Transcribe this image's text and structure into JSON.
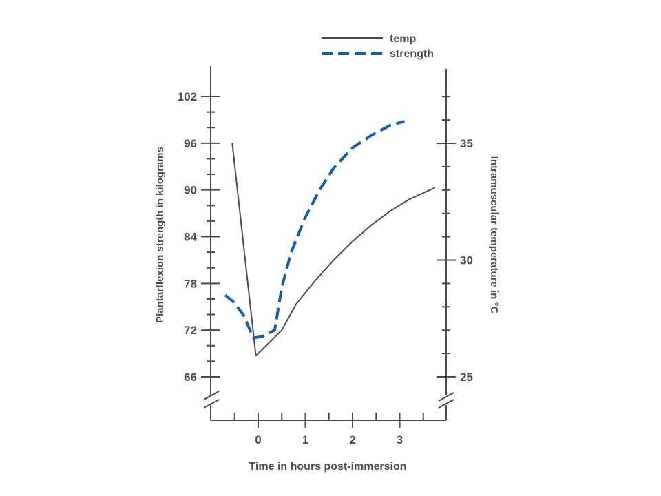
{
  "chart_data": {
    "type": "line",
    "title": "",
    "xlabel": "Time in hours post-immersion",
    "ylabel_left": "Plantarflexion strength in kilograms",
    "ylabel_right": "Intramuscular temperature in °C",
    "x_ticks": [
      "0",
      "1",
      "2",
      "3"
    ],
    "x_tick_values": [
      0,
      1,
      2,
      3
    ],
    "xlim": [
      -1,
      4
    ],
    "y_left_ticks": [
      "66",
      "72",
      "78",
      "84",
      "90",
      "96",
      "102"
    ],
    "y_left_tick_values": [
      66,
      72,
      78,
      84,
      90,
      96,
      102
    ],
    "ylim_left": [
      66,
      102
    ],
    "y_right_ticks": [
      "25",
      "30",
      "35"
    ],
    "y_right_tick_values": [
      25,
      30,
      35
    ],
    "ylim_right": [
      25,
      35
    ],
    "axis_breaks": true,
    "grid": false,
    "legend_position": "top-right",
    "series": [
      {
        "name": "temp",
        "axis": "right",
        "style": "solid",
        "color": "#4a4a4a",
        "x": [
          -0.55,
          -0.05,
          0.5,
          0.8,
          1.2,
          1.6,
          2.0,
          2.4,
          2.8,
          3.2,
          3.75
        ],
        "y": [
          35.0,
          25.9,
          27.0,
          28.1,
          29.1,
          30.0,
          30.8,
          31.5,
          32.1,
          32.6,
          33.1
        ]
      },
      {
        "name": "strength",
        "axis": "left",
        "style": "dashed",
        "color": "#1a5ca3",
        "x": [
          -0.7,
          -0.5,
          -0.3,
          -0.1,
          0.1,
          0.35,
          0.5,
          0.7,
          1.0,
          1.3,
          1.6,
          2.0,
          2.4,
          2.8,
          3.1
        ],
        "y": [
          76.5,
          75.5,
          73.8,
          71.0,
          71.2,
          72.0,
          77.5,
          82.0,
          86.5,
          90.0,
          92.8,
          95.4,
          97.0,
          98.3,
          98.8
        ]
      }
    ]
  }
}
